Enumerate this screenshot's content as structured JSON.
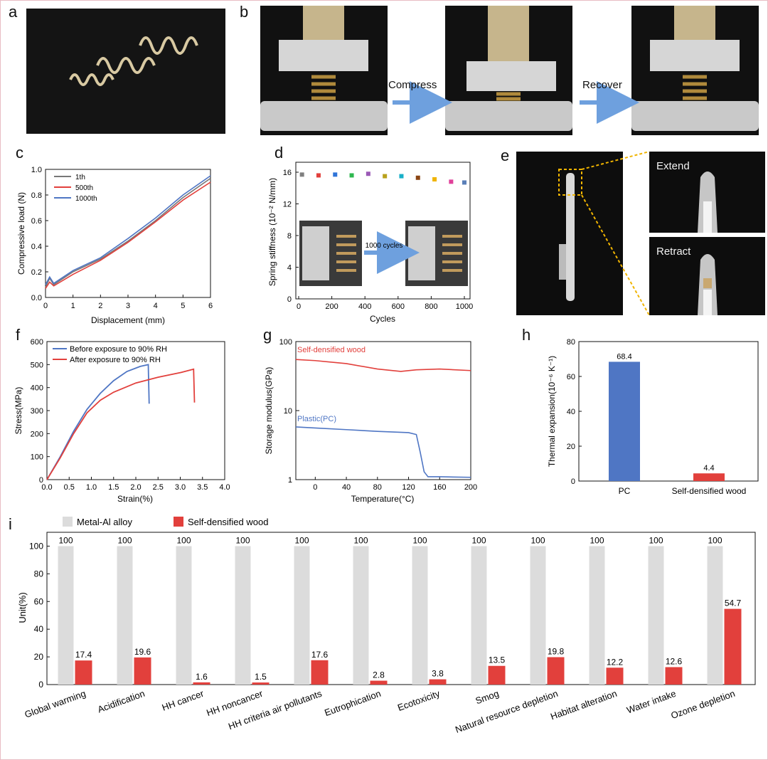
{
  "panels": {
    "a": "a",
    "b": "b",
    "c": "c",
    "d": "d",
    "e": "e",
    "f": "f",
    "g": "g",
    "h": "h",
    "i": "i"
  },
  "panel_b": {
    "step1": "Compress",
    "step2": "Recover"
  },
  "panel_e": {
    "top": "Extend",
    "bottom": "Retract"
  },
  "colors": {
    "blue": "#4f76c4",
    "red": "#e2403c",
    "grey": "#dcdcdc",
    "orange": "#f0b400"
  },
  "chart_data": [
    {
      "id": "c",
      "type": "line",
      "xlabel": "Displacement (mm)",
      "ylabel": "Compressive load (N)",
      "xlim": [
        0,
        6
      ],
      "ylim": [
        0,
        1.0
      ],
      "xticks": [
        "0",
        "1",
        "2",
        "3",
        "4",
        "5",
        "6"
      ],
      "yticks": [
        "0.0",
        "0.2",
        "0.4",
        "0.6",
        "0.8",
        "1.0"
      ],
      "legend": [
        "1th",
        "500th",
        "1000th"
      ],
      "series": [
        {
          "name": "1th",
          "color": "#777777",
          "x": [
            0,
            0.15,
            0.3,
            1,
            2,
            3,
            4,
            5,
            6
          ],
          "y": [
            0.08,
            0.15,
            0.1,
            0.2,
            0.3,
            0.44,
            0.6,
            0.78,
            0.93
          ]
        },
        {
          "name": "500th",
          "color": "#e2403c",
          "x": [
            0,
            0.15,
            0.3,
            1,
            2,
            3,
            4,
            5,
            6
          ],
          "y": [
            0.07,
            0.12,
            0.09,
            0.18,
            0.29,
            0.43,
            0.59,
            0.76,
            0.9
          ]
        },
        {
          "name": "1000th",
          "color": "#4f76c4",
          "x": [
            0,
            0.15,
            0.3,
            1,
            2,
            3,
            4,
            5,
            6
          ],
          "y": [
            0.1,
            0.16,
            0.11,
            0.21,
            0.31,
            0.46,
            0.62,
            0.8,
            0.95
          ]
        }
      ]
    },
    {
      "id": "d",
      "type": "scatter",
      "xlabel": "Cycles",
      "ylabel": "Spring stiffness (10⁻² N/mm)",
      "xlim": [
        0,
        1000
      ],
      "ylim": [
        0,
        16
      ],
      "xticks": [
        "0",
        "200",
        "400",
        "600",
        "800",
        "1000"
      ],
      "yticks": [
        "0",
        "4",
        "8",
        "12",
        "16"
      ],
      "inset_label": "1000 cycles",
      "x": [
        20,
        120,
        220,
        320,
        420,
        520,
        620,
        720,
        820,
        920,
        1000
      ],
      "y": [
        15.7,
        15.6,
        15.7,
        15.6,
        15.8,
        15.5,
        15.5,
        15.3,
        15.1,
        14.8,
        14.7
      ],
      "point_colors": [
        "#7f7f7f",
        "#e2403c",
        "#2f74d8",
        "#2fb84f",
        "#9b59b6",
        "#b8a11c",
        "#19b0c8",
        "#8b4513",
        "#f0b400",
        "#e0409a",
        "#5a7fb8"
      ]
    },
    {
      "id": "f",
      "type": "line",
      "xlabel": "Strain(%)",
      "ylabel": "Stress(MPa)",
      "xlim": [
        0,
        4.0
      ],
      "ylim": [
        0,
        600
      ],
      "xticks": [
        "0.0",
        "0.5",
        "1.0",
        "1.5",
        "2.0",
        "2.5",
        "3.0",
        "3.5",
        "4.0"
      ],
      "yticks": [
        "0",
        "100",
        "200",
        "300",
        "400",
        "500",
        "600"
      ],
      "series": [
        {
          "name": "Before exposure to 90% RH",
          "color": "#4f76c4",
          "x": [
            0,
            0.3,
            0.6,
            0.9,
            1.2,
            1.5,
            1.8,
            2.1,
            2.28,
            2.3
          ],
          "y": [
            0,
            100,
            210,
            305,
            375,
            430,
            470,
            492,
            500,
            330
          ]
        },
        {
          "name": "After exposure to 90% RH",
          "color": "#e2403c",
          "x": [
            0,
            0.3,
            0.6,
            0.9,
            1.2,
            1.5,
            2.0,
            2.5,
            3.0,
            3.3,
            3.32
          ],
          "y": [
            0,
            95,
            200,
            290,
            345,
            380,
            420,
            445,
            465,
            480,
            335
          ]
        }
      ]
    },
    {
      "id": "g",
      "type": "line",
      "xlabel": "Temperature(°C)",
      "ylabel": "Storage modulus(GPa)",
      "xlim": [
        -25,
        200
      ],
      "yscale": "log",
      "ylim": [
        1,
        100
      ],
      "xticks": [
        "0",
        "40",
        "80",
        "120",
        "160",
        "200"
      ],
      "yticks": [
        "1",
        "10",
        "100"
      ],
      "series": [
        {
          "name": "Self-densified wood",
          "color": "#e2403c",
          "x": [
            -25,
            0,
            40,
            80,
            110,
            130,
            160,
            200
          ],
          "y": [
            55,
            53,
            48,
            40,
            37,
            39,
            40,
            38
          ]
        },
        {
          "name": "Plastic(PC)",
          "color": "#4f76c4",
          "x": [
            -25,
            0,
            40,
            80,
            120,
            130,
            135,
            140,
            145,
            160,
            200
          ],
          "y": [
            5.8,
            5.6,
            5.3,
            5.0,
            4.8,
            4.5,
            2.5,
            1.3,
            1.1,
            1.1,
            1.08
          ]
        }
      ]
    },
    {
      "id": "h",
      "type": "bar",
      "xlabel": "",
      "ylabel": "Thermal expansion(10⁻⁶ K⁻¹)",
      "ylim": [
        0,
        80
      ],
      "yticks": [
        "0",
        "20",
        "40",
        "60",
        "80"
      ],
      "categories": [
        "PC",
        "Self-densified wood"
      ],
      "values": [
        68.4,
        4.4
      ],
      "value_labels": [
        "68.4",
        "4.4"
      ]
    },
    {
      "id": "i",
      "type": "bar",
      "xlabel": "",
      "ylabel": "Unit(%)",
      "ylim": [
        0,
        110
      ],
      "yticks": [
        "0",
        "20",
        "40",
        "60",
        "80",
        "100"
      ],
      "legend": [
        "Metal-Al alloy",
        "Self-densified wood"
      ],
      "categories": [
        "Global warming",
        "Acidification",
        "HH cancer",
        "HH noncancer",
        "HH criteria air pollutants",
        "Eutrophication",
        "Ecotoxicity",
        "Smog",
        "Natural resource depletion",
        "Habitat alteration",
        "Water intake",
        "Ozone depletion"
      ],
      "series": [
        {
          "name": "Metal-Al alloy",
          "values": [
            100,
            100,
            100,
            100,
            100,
            100,
            100,
            100,
            100,
            100,
            100,
            100
          ],
          "labels": [
            "100",
            "100",
            "100",
            "100",
            "100",
            "100",
            "100",
            "100",
            "100",
            "100",
            "100",
            "100"
          ]
        },
        {
          "name": "Self-densified wood",
          "values": [
            17.4,
            19.6,
            1.6,
            1.5,
            17.6,
            2.8,
            3.8,
            13.5,
            19.8,
            12.2,
            12.6,
            54.7
          ],
          "labels": [
            "17.4",
            "19.6",
            "1.6",
            "1.5",
            "17.6",
            "2.8",
            "3.8",
            "13.5",
            "19.8",
            "12.2",
            "12.6",
            "54.7"
          ]
        }
      ]
    }
  ]
}
